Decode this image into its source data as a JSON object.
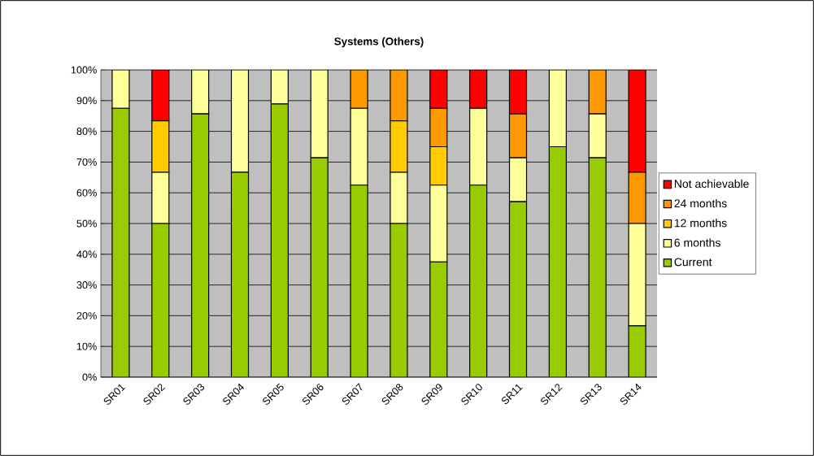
{
  "chart_data": {
    "type": "bar",
    "stacked": true,
    "title": "Systems (Others)",
    "categories": [
      "SR01",
      "SR02",
      "SR03",
      "SR04",
      "SR05",
      "SR06",
      "SR07",
      "SR08",
      "SR09",
      "SR10",
      "SR11",
      "SR12",
      "SR13",
      "SR14"
    ],
    "series": [
      {
        "name": "Current",
        "color": "#99cc00",
        "values": [
          87.5,
          50,
          85.7,
          66.7,
          88.9,
          71.4,
          62.5,
          50,
          37.5,
          62.5,
          57.1,
          75,
          71.4,
          16.7
        ]
      },
      {
        "name": "6 months",
        "color": "#ffff99",
        "values": [
          12.5,
          16.7,
          14.3,
          33.3,
          11.1,
          28.6,
          25,
          16.7,
          25,
          25,
          14.3,
          25,
          14.3,
          33.3
        ]
      },
      {
        "name": "12 months",
        "color": "#ffcc00",
        "values": [
          0,
          16.7,
          0,
          0,
          0,
          0,
          0,
          16.7,
          12.5,
          0,
          0,
          0,
          0,
          0
        ]
      },
      {
        "name": "24 months",
        "color": "#ff9900",
        "values": [
          0,
          0,
          0,
          0,
          0,
          0,
          12.5,
          16.6,
          12.5,
          0,
          14.3,
          0,
          14.3,
          16.7
        ]
      },
      {
        "name": "Not achievable",
        "color": "#ff0000",
        "values": [
          0,
          16.6,
          0,
          0,
          0,
          0,
          0,
          0,
          12.5,
          12.5,
          14.3,
          0,
          0,
          33.3
        ]
      }
    ],
    "ylim": [
      0,
      100
    ],
    "yticks": [
      {
        "value": 0,
        "label": "0%"
      },
      {
        "value": 10,
        "label": "10%"
      },
      {
        "value": 20,
        "label": "20%"
      },
      {
        "value": 30,
        "label": "30%"
      },
      {
        "value": 40,
        "label": "40%"
      },
      {
        "value": 50,
        "label": "50%"
      },
      {
        "value": 60,
        "label": "60%"
      },
      {
        "value": 70,
        "label": "70%"
      },
      {
        "value": 80,
        "label": "80%"
      },
      {
        "value": 90,
        "label": "90%"
      },
      {
        "value": 100,
        "label": "100%"
      }
    ],
    "grid": "y",
    "legend": "right"
  }
}
